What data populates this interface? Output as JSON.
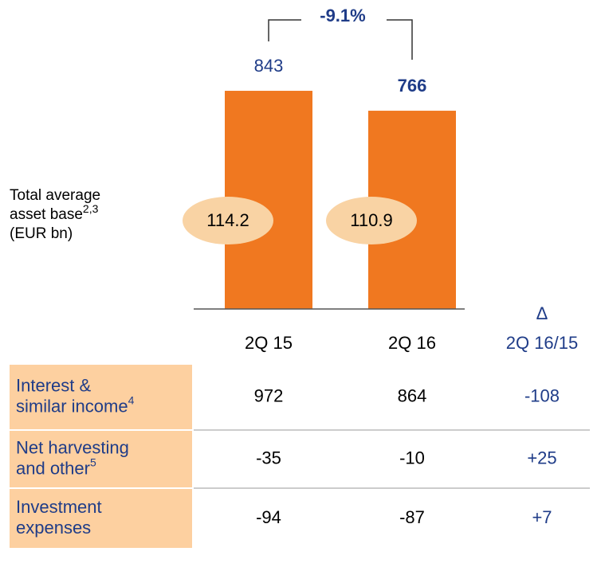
{
  "chart_data": {
    "type": "bar",
    "categories": [
      "2Q 15",
      "2Q 16"
    ],
    "values": [
      843,
      766
    ],
    "color": "#f07820",
    "change": {
      "value": -9.1,
      "label": "-9.1%"
    },
    "asset_base": {
      "label": [
        "Total average",
        "asset base",
        "(EUR bn)"
      ],
      "note": "2,3",
      "values": [
        114.2,
        110.9
      ],
      "color": "#f9d3a4"
    },
    "delta_header": [
      "Δ",
      "2Q 16/15"
    ]
  },
  "table": {
    "rows": [
      {
        "label": [
          "Interest &",
          "similar income"
        ],
        "note": "4",
        "cells": [
          "972",
          "864",
          "-108"
        ]
      },
      {
        "label": [
          "Net harvesting",
          "and other"
        ],
        "note": "5",
        "cells": [
          "-35",
          "-10",
          "+25"
        ]
      },
      {
        "label": [
          "Investment",
          "expenses"
        ],
        "cells": [
          "-94",
          "-87",
          "+7"
        ]
      }
    ]
  }
}
